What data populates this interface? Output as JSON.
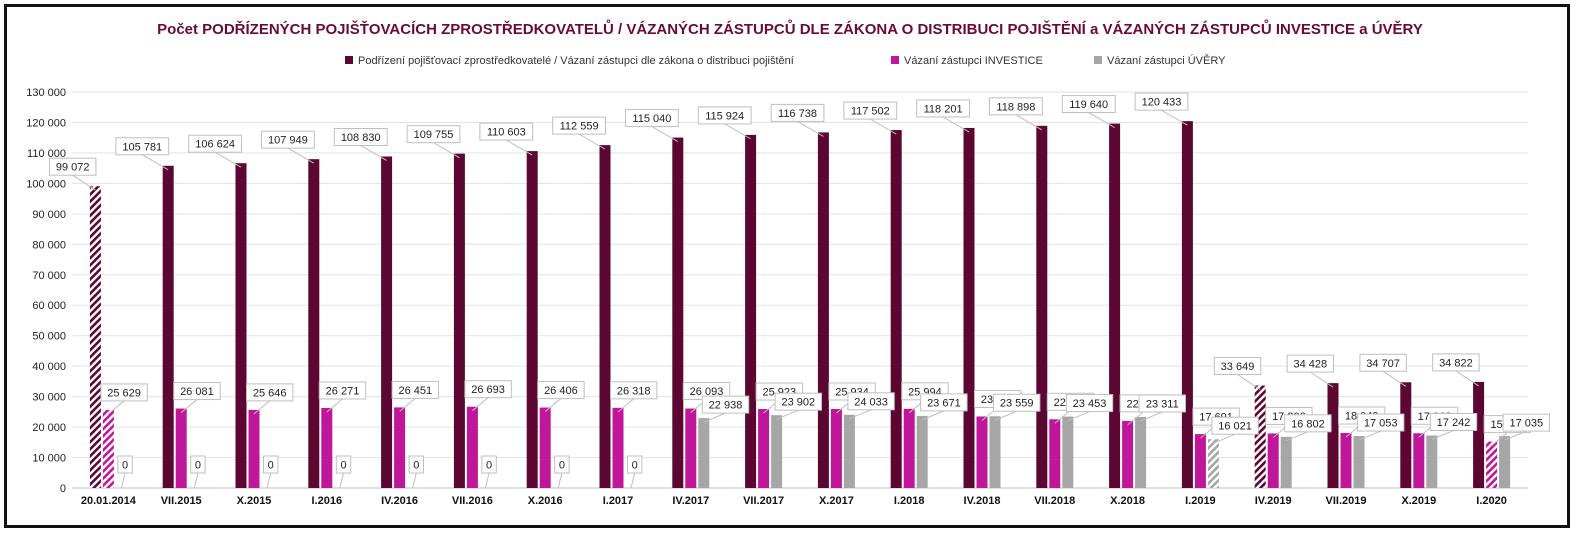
{
  "chart_data": {
    "type": "bar",
    "title": "Počet PODŘÍZENÝCH POJIŠŤOVACÍCH ZPROSTŘEDKOVATELŮ / VÁZANÝCH ZÁSTUPCŮ DLE ZÁKONA O DISTRIBUCI POJIŠTĚNÍ a VÁZANÝCH ZÁSTUPCŮ INVESTICE a ÚVĚRY",
    "categories": [
      "20.01.2014",
      "VII.2015",
      "X.2015",
      "I.2016",
      "IV.2016",
      "VII.2016",
      "X.2016",
      "I.2017",
      "IV.2017",
      "VII.2017",
      "X.2017",
      "I.2018",
      "IV.2018",
      "VII.2018",
      "X.2018",
      "I.2019",
      "IV.2019",
      "VII.2019",
      "X.2019",
      "I.2020"
    ],
    "ylim": [
      0,
      130000
    ],
    "yticks": [
      0,
      10000,
      20000,
      30000,
      40000,
      50000,
      60000,
      70000,
      80000,
      90000,
      100000,
      110000,
      120000,
      130000
    ],
    "ytick_labels": [
      "0",
      "10 000",
      "20 000",
      "30 000",
      "40 000",
      "50 000",
      "60 000",
      "70 000",
      "80 000",
      "90 000",
      "100 000",
      "110 000",
      "120 000",
      "130 000"
    ],
    "grid": true,
    "legend_position": "top-center",
    "series": [
      {
        "name": "Podřízení pojišťovací zprostředkovatelé / Vázaní zástupci dle zákona o distribuci pojištění",
        "color": "#5c0632",
        "values": [
          99072,
          105781,
          106624,
          107949,
          108830,
          109755,
          110603,
          112559,
          115040,
          115924,
          116738,
          117502,
          118201,
          118898,
          119640,
          120433,
          33649,
          34428,
          34707,
          34822
        ],
        "labels": [
          "99 072",
          "105 781",
          "106 624",
          "107 949",
          "108 830",
          "109 755",
          "110 603",
          "112 559",
          "115 040",
          "115 924",
          "116 738",
          "117 502",
          "118 201",
          "118 898",
          "119 640",
          "120 433",
          "33 649",
          "34 428",
          "34 707",
          "34 822"
        ],
        "hatched": [
          true,
          false,
          false,
          false,
          false,
          false,
          false,
          false,
          false,
          false,
          false,
          false,
          false,
          false,
          false,
          false,
          true,
          false,
          false,
          false
        ]
      },
      {
        "name": "Vázaní zástupci INVESTICE",
        "color": "#c0179a",
        "values": [
          25629,
          26081,
          25646,
          26271,
          26451,
          26693,
          26406,
          26318,
          26093,
          25923,
          25934,
          25994,
          23481,
          22561,
          22038,
          17691,
          17906,
          18049,
          17968,
          15230
        ],
        "labels": [
          "25 629",
          "26 081",
          "25 646",
          "26 271",
          "26 451",
          "26 693",
          "26 406",
          "26 318",
          "26 093",
          "25 923",
          "25 934",
          "25 994",
          "23 481",
          "22 561",
          "22 038",
          "17 691",
          "17 906",
          "18 049",
          "17 968",
          "15 230"
        ],
        "hatched": [
          true,
          false,
          false,
          false,
          false,
          false,
          false,
          false,
          false,
          false,
          false,
          false,
          false,
          false,
          false,
          false,
          false,
          false,
          false,
          true
        ]
      },
      {
        "name": "Vázaní zástupci ÚVĚRY",
        "color": "#a6a6a6",
        "values": [
          0,
          0,
          0,
          0,
          0,
          0,
          0,
          0,
          22938,
          23902,
          24033,
          23671,
          23559,
          23453,
          23311,
          16021,
          16802,
          17053,
          17242,
          17035
        ],
        "labels": [
          "0",
          "0",
          "0",
          "0",
          "0",
          "0",
          "0",
          "0",
          "22 938",
          "23 902",
          "24 033",
          "23 671",
          "23 559",
          "23 453",
          "23 311",
          "16 021",
          "16 802",
          "17 053",
          "17 242",
          "17 035"
        ],
        "hatched": [
          false,
          false,
          false,
          false,
          false,
          false,
          false,
          false,
          false,
          false,
          false,
          false,
          false,
          false,
          false,
          true,
          false,
          false,
          false,
          false
        ]
      }
    ]
  }
}
